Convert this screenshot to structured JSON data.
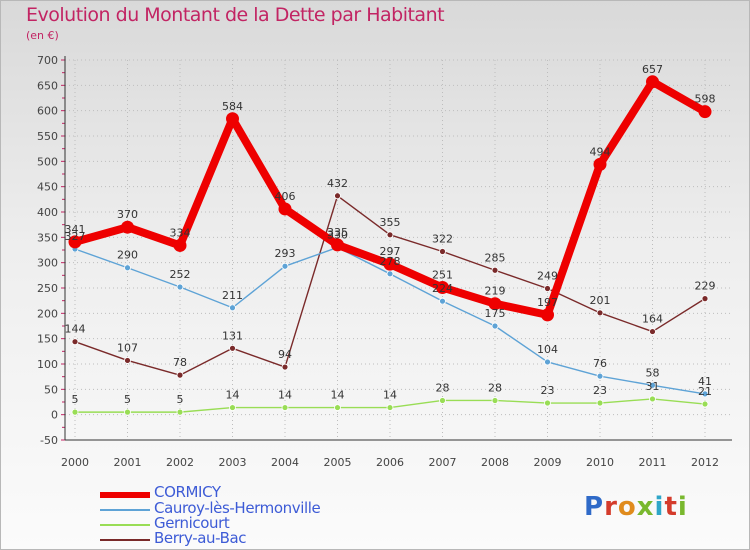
{
  "title": "Evolution du Montant de la Dette par Habitant",
  "subtitle": "(en €)",
  "logo": "Proxiti",
  "logo_colors": [
    "#2f6ac8",
    "#d43b2b",
    "#e08b1c",
    "#79b82e",
    "#2fa6c8",
    "#d43b2b",
    "#79b82e"
  ],
  "chart_data": {
    "type": "line",
    "title": "Evolution du Montant de la Dette par Habitant",
    "subtitle": "(en €)",
    "xlabel": "",
    "ylabel": "",
    "ylim": [
      -50,
      700
    ],
    "yticks": [
      -50,
      0,
      50,
      100,
      150,
      200,
      250,
      300,
      350,
      400,
      450,
      500,
      550,
      600,
      650,
      700
    ],
    "grid": true,
    "legend_position": "bottom-left",
    "categories": [
      "2000",
      "2001",
      "2002",
      "2003",
      "2004",
      "2005",
      "2006",
      "2007",
      "2008",
      "2009",
      "2010",
      "2011",
      "2012"
    ],
    "series": [
      {
        "name": "CORMICY",
        "color": "#ee0000",
        "emphasis": true,
        "values": [
          341,
          370,
          334,
          584,
          406,
          335,
          297,
          251,
          219,
          197,
          494,
          657,
          598
        ]
      },
      {
        "name": "Cauroy-lès-Hermonville",
        "color": "#5ea3d6",
        "emphasis": false,
        "values": [
          327,
          290,
          252,
          211,
          293,
          330,
          278,
          224,
          175,
          104,
          76,
          58,
          41
        ]
      },
      {
        "name": "Gernicourt",
        "color": "#99dd55",
        "emphasis": false,
        "values": [
          5,
          5,
          5,
          14,
          14,
          14,
          14,
          28,
          28,
          23,
          23,
          31,
          21
        ]
      },
      {
        "name": "Berry-au-Bac",
        "color": "#7a2a2a",
        "emphasis": false,
        "values": [
          144,
          107,
          78,
          131,
          94,
          432,
          355,
          322,
          285,
          249,
          201,
          164,
          229
        ]
      }
    ]
  }
}
